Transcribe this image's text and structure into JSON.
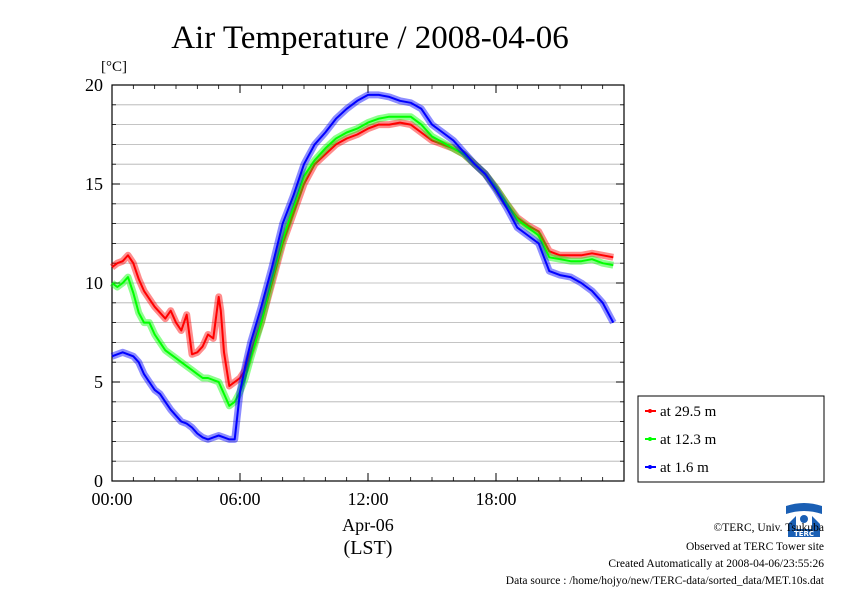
{
  "chart_data": {
    "type": "line",
    "title": "Air Temperature / 2008-04-06",
    "ylabel": "[°C]",
    "xlabel": "(LST)",
    "date_label": "Apr-06",
    "x_unit": "hours (LST)",
    "xlim": [
      0,
      24
    ],
    "ylim": [
      0,
      20
    ],
    "x_ticks": [
      0,
      6,
      12,
      18
    ],
    "x_tick_labels": [
      "00:00",
      "06:00",
      "12:00",
      "18:00"
    ],
    "y_ticks": [
      0,
      5,
      10,
      15,
      20
    ],
    "y_tick_labels": [
      "0",
      "5",
      "10",
      "15",
      "20"
    ],
    "grid": true,
    "legend_position": "bottom-right",
    "series": [
      {
        "name": "at 29.5 m",
        "color": "#ff0000",
        "x": [
          0,
          0.25,
          0.5,
          0.75,
          1.0,
          1.25,
          1.5,
          1.75,
          2.0,
          2.25,
          2.5,
          2.75,
          3.0,
          3.25,
          3.5,
          3.75,
          4.0,
          4.25,
          4.5,
          4.75,
          5.0,
          5.1,
          5.25,
          5.5,
          5.75,
          6.0,
          6.25,
          6.5,
          7.0,
          7.5,
          8.0,
          8.5,
          9.0,
          9.5,
          10.0,
          10.5,
          11.0,
          11.5,
          12.0,
          12.5,
          13.0,
          13.5,
          14.0,
          14.5,
          15.0,
          15.5,
          16.0,
          16.5,
          17.0,
          17.5,
          18.0,
          18.5,
          19.0,
          19.5,
          20.0,
          20.5,
          21.0,
          21.5,
          22.0,
          22.5,
          23.0,
          23.5
        ],
        "values": [
          10.8,
          11.0,
          11.1,
          11.4,
          11.0,
          10.2,
          9.6,
          9.2,
          8.8,
          8.5,
          8.2,
          8.6,
          8.0,
          7.6,
          8.4,
          6.4,
          6.5,
          6.8,
          7.4,
          7.2,
          9.3,
          8.6,
          6.5,
          4.8,
          5.0,
          5.2,
          5.6,
          6.5,
          8.0,
          10.0,
          12.0,
          13.5,
          15.0,
          16.0,
          16.5,
          17.0,
          17.3,
          17.5,
          17.8,
          18.0,
          18.0,
          18.1,
          18.0,
          17.6,
          17.2,
          17.0,
          16.8,
          16.5,
          16.0,
          15.5,
          14.8,
          14.0,
          13.3,
          12.9,
          12.6,
          11.6,
          11.4,
          11.4,
          11.4,
          11.5,
          11.4,
          11.3
        ]
      },
      {
        "name": "at 12.3 m",
        "color": "#00ff00",
        "x": [
          0,
          0.25,
          0.5,
          0.75,
          1.0,
          1.25,
          1.5,
          1.75,
          2.0,
          2.25,
          2.5,
          2.75,
          3.0,
          3.25,
          3.5,
          3.75,
          4.0,
          4.25,
          4.5,
          4.75,
          5.0,
          5.25,
          5.5,
          5.75,
          6.0,
          6.25,
          6.5,
          7.0,
          7.5,
          8.0,
          8.5,
          9.0,
          9.5,
          10.0,
          10.5,
          11.0,
          11.5,
          12.0,
          12.5,
          13.0,
          13.5,
          14.0,
          14.5,
          15.0,
          15.5,
          16.0,
          16.5,
          17.0,
          17.5,
          18.0,
          18.5,
          19.0,
          19.5,
          20.0,
          20.5,
          21.0,
          21.5,
          22.0,
          22.5,
          23.0,
          23.5
        ],
        "values": [
          10.0,
          9.8,
          10.0,
          10.3,
          9.5,
          8.5,
          8.0,
          8.0,
          7.4,
          7.0,
          6.6,
          6.4,
          6.2,
          6.0,
          5.8,
          5.6,
          5.4,
          5.2,
          5.2,
          5.1,
          5.0,
          4.4,
          3.8,
          4.0,
          4.5,
          5.2,
          6.2,
          8.0,
          10.2,
          12.2,
          13.8,
          15.4,
          16.2,
          16.8,
          17.3,
          17.6,
          17.8,
          18.1,
          18.3,
          18.4,
          18.4,
          18.4,
          18.0,
          17.4,
          17.1,
          16.8,
          16.5,
          16.0,
          15.5,
          14.8,
          14.0,
          13.2,
          12.8,
          12.4,
          11.3,
          11.2,
          11.1,
          11.1,
          11.2,
          11.0,
          10.9
        ]
      },
      {
        "name": "at 1.6 m",
        "color": "#0000ff",
        "x": [
          0,
          0.25,
          0.5,
          0.75,
          1.0,
          1.25,
          1.5,
          1.75,
          2.0,
          2.25,
          2.5,
          2.75,
          3.0,
          3.25,
          3.5,
          3.75,
          4.0,
          4.25,
          4.5,
          4.75,
          5.0,
          5.25,
          5.5,
          5.75,
          6.0,
          6.25,
          6.5,
          7.0,
          7.5,
          8.0,
          8.5,
          9.0,
          9.5,
          10.0,
          10.5,
          11.0,
          11.5,
          12.0,
          12.5,
          13.0,
          13.5,
          14.0,
          14.5,
          15.0,
          15.5,
          16.0,
          16.5,
          17.0,
          17.5,
          18.0,
          18.5,
          19.0,
          19.5,
          20.0,
          20.5,
          21.0,
          21.5,
          22.0,
          22.5,
          23.0,
          23.5
        ],
        "values": [
          6.3,
          6.4,
          6.5,
          6.4,
          6.3,
          6.0,
          5.4,
          5.0,
          4.6,
          4.4,
          4.0,
          3.6,
          3.3,
          3.0,
          2.9,
          2.7,
          2.4,
          2.2,
          2.1,
          2.2,
          2.3,
          2.2,
          2.1,
          2.1,
          4.5,
          5.8,
          7.0,
          8.8,
          10.8,
          13.0,
          14.4,
          16.0,
          17.0,
          17.6,
          18.3,
          18.8,
          19.2,
          19.5,
          19.5,
          19.4,
          19.2,
          19.1,
          18.8,
          18.0,
          17.6,
          17.2,
          16.6,
          16.0,
          15.5,
          14.7,
          13.8,
          12.8,
          12.4,
          12.0,
          10.6,
          10.4,
          10.3,
          10.0,
          9.6,
          9.0,
          8.0
        ]
      }
    ]
  },
  "credits": {
    "copyright": "©TERC, Univ. Tsukuba",
    "observed": "Observed at TERC Tower site",
    "created": "Created Automatically at 2008-04-06/23:55:26",
    "source": "Data source : /home/hojyo/new/TERC-data/sorted_data/MET.10s.dat"
  },
  "logo": {
    "text": "TERC",
    "color": "#1a5fb4"
  }
}
